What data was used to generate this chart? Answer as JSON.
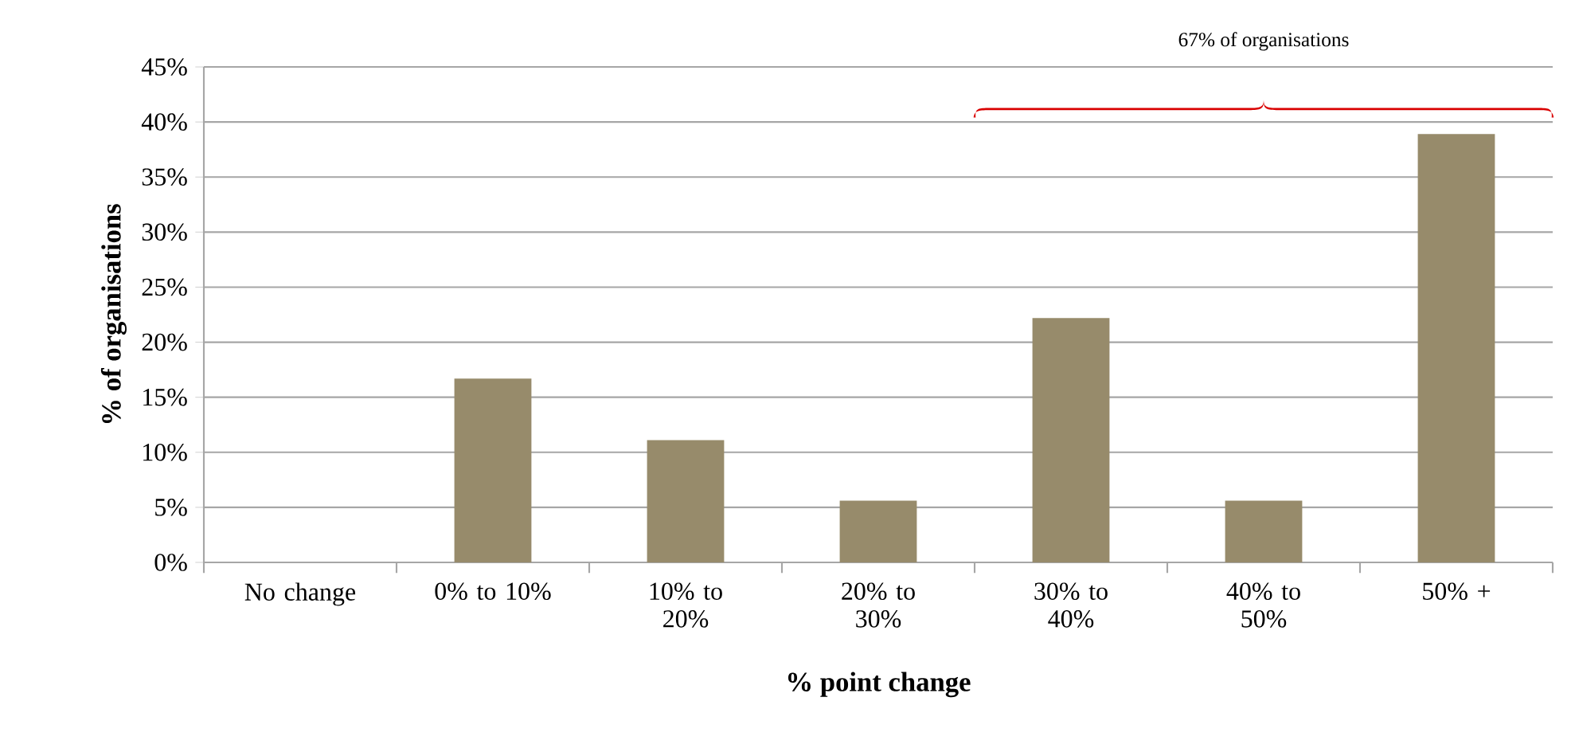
{
  "chart_data": {
    "type": "bar",
    "xlabel": "% point change",
    "ylabel": "% of organisations",
    "categories": [
      "No change",
      "0% to 10%",
      "10% to 20%",
      "20% to 30%",
      "30% to 40%",
      "40% to 50%",
      "50% +"
    ],
    "values": [
      0,
      16.7,
      11.1,
      5.6,
      22.2,
      5.6,
      38.9
    ],
    "color": "#978b6b",
    "ylim": [
      0,
      45
    ],
    "yticks": [
      {
        "value": 0,
        "label": "0%"
      },
      {
        "value": 5,
        "label": "5%"
      },
      {
        "value": 10,
        "label": "10%"
      },
      {
        "value": 15,
        "label": "15%"
      },
      {
        "value": 20,
        "label": "20%"
      },
      {
        "value": 25,
        "label": "25%"
      },
      {
        "value": 30,
        "label": "30%"
      },
      {
        "value": 35,
        "label": "35%"
      },
      {
        "value": 40,
        "label": "40%"
      },
      {
        "value": 45,
        "label": "45%"
      }
    ],
    "grid": "y",
    "annotations": [
      "67% of organisations"
    ]
  }
}
